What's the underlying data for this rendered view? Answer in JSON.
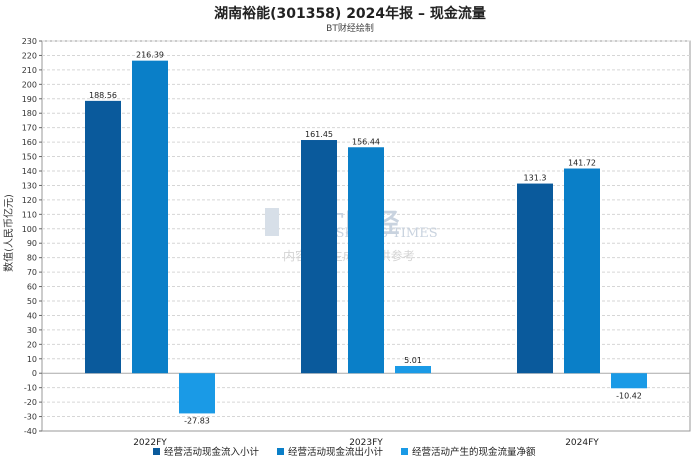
{
  "title": "湖南裕能(301358) 2024年报 – 现金流量",
  "subtitle": "BT财经绘制",
  "watermark": {
    "logo": "BT财经",
    "brand": "BUSINESS TIMES",
    "note": "内容由AI生成，仅供参考"
  },
  "chart_data": {
    "type": "bar",
    "categories": [
      "2022FY",
      "2023FY",
      "2024FY"
    ],
    "ylabel": "数值(人民币亿元)",
    "ylim": [
      -40,
      230
    ],
    "ytick_step": 10,
    "grid": true,
    "legend_position": "bottom",
    "series": [
      {
        "name": "经营活动现金流入小计",
        "color": "#0a5a9c",
        "values": [
          188.56,
          161.45,
          131.3
        ],
        "labels": [
          "188.56",
          "161.45",
          "131.3"
        ]
      },
      {
        "name": "经营活动现金流出小计",
        "color": "#0a7fc8",
        "values": [
          216.39,
          156.44,
          141.72
        ],
        "labels": [
          "216.39",
          "156.44",
          "141.72"
        ]
      },
      {
        "name": "经营活动产生的现金流量净额",
        "color": "#1a9ae6",
        "values": [
          -27.83,
          5.01,
          -10.42
        ],
        "labels": [
          "-27.83",
          "5.01",
          "-10.42"
        ]
      }
    ]
  }
}
